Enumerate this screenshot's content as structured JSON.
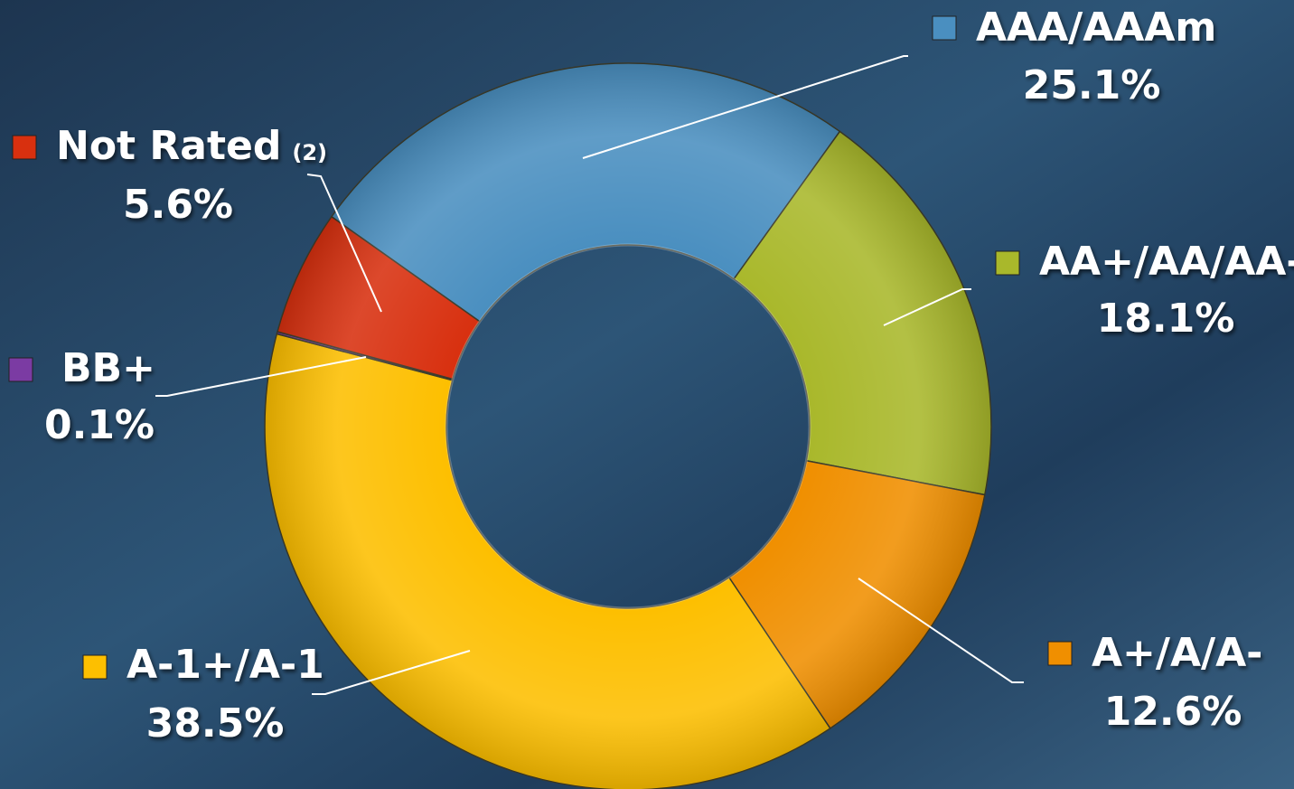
{
  "chart_data": {
    "type": "donut",
    "categories": [
      "AAA/AAAm",
      "AA+/AA/AA-",
      "A+/A/A-",
      "A-1+/A-1",
      "BB+",
      "Not Rated"
    ],
    "category_notes": [
      null,
      null,
      null,
      null,
      null,
      "(2)"
    ],
    "values": [
      25.1,
      18.1,
      12.6,
      38.5,
      0.1,
      5.6
    ],
    "value_labels": [
      "25.1%",
      "18.1%",
      "12.6%",
      "38.5%",
      "0.1%",
      "5.6%"
    ],
    "colors": [
      "#4a8fc0",
      "#a9b82b",
      "#f08f00",
      "#fdbf00",
      "#7b3ba3",
      "#d8300f"
    ]
  }
}
